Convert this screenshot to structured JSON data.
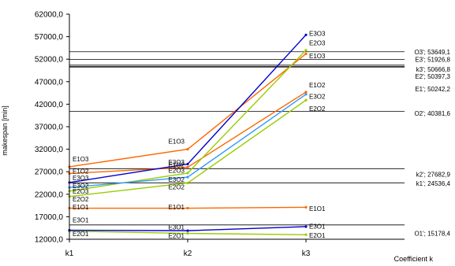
{
  "chart_data": {
    "type": "line",
    "categories": [
      "k1",
      "k2",
      "k3"
    ],
    "xlabel": "Coefficient k",
    "ylabel": "makespan [min]",
    "ylim": [
      12000,
      62000
    ],
    "yticks": [
      12000,
      17000,
      22000,
      27000,
      32000,
      37000,
      42000,
      47000,
      52000,
      57000,
      62000
    ],
    "ytick_labels": [
      "12000,0",
      "17000,0",
      "22000,0",
      "27000,0",
      "32000,0",
      "37000,0",
      "42000,0",
      "47000,0",
      "52000,0",
      "57000,0",
      "62000,0"
    ],
    "grid": false,
    "series": [
      {
        "name": "E1O1",
        "color": "#ff6600",
        "values": [
          18900,
          18900,
          19100
        ]
      },
      {
        "name": "E1O2",
        "color": "#ff6600",
        "values": [
          26600,
          28000,
          44700
        ]
      },
      {
        "name": "E1O3",
        "color": "#ff6600",
        "values": [
          28100,
          32000,
          53200
        ]
      },
      {
        "name": "E2O1",
        "color": "#99cc00",
        "values": [
          13800,
          13300,
          13000
        ]
      },
      {
        "name": "E2O2",
        "color": "#99cc00",
        "values": [
          21500,
          24500,
          42900
        ]
      },
      {
        "name": "E2O3",
        "color": "#99cc00",
        "values": [
          22700,
          26700,
          54000
        ]
      },
      {
        "name": "E3O1",
        "color": "#0000cc",
        "values": [
          14000,
          13900,
          14800
        ]
      },
      {
        "name": "E3O2",
        "color": "#3399ff",
        "values": [
          23500,
          25800,
          44200
        ]
      },
      {
        "name": "E3O3",
        "color": "#0000cc",
        "values": [
          24600,
          28700,
          57400
        ]
      }
    ],
    "point_labels": [
      {
        "text": "E1O3",
        "category": 0,
        "y": 29800
      },
      {
        "text": "E1O2",
        "category": 0,
        "y": 27100
      },
      {
        "text": "E3O3",
        "category": 0,
        "y": 25600
      },
      {
        "text": "E3O2",
        "category": 0,
        "y": 23900
      },
      {
        "text": "E2O3",
        "category": 0,
        "y": 22700
      },
      {
        "text": "E2O2",
        "category": 0,
        "y": 20900
      },
      {
        "text": "E1O1",
        "category": 0,
        "y": 19200
      },
      {
        "text": "E3O1",
        "category": 0,
        "y": 16300
      },
      {
        "text": "E2O1",
        "category": 0,
        "y": 13200
      },
      {
        "text": "E1O3",
        "category": 1,
        "y": 33800
      },
      {
        "text": "E3O3",
        "category": 1,
        "y": 29100
      },
      {
        "text": "E1O2",
        "category": 1,
        "y": 28500
      },
      {
        "text": "E2O3",
        "category": 1,
        "y": 27300
      },
      {
        "text": "E3O2",
        "category": 1,
        "y": 25300
      },
      {
        "text": "E2O2",
        "category": 1,
        "y": 23600
      },
      {
        "text": "E1O1",
        "category": 1,
        "y": 19200
      },
      {
        "text": "E3O1",
        "category": 1,
        "y": 14700
      },
      {
        "text": "E2O1",
        "category": 1,
        "y": 12800
      },
      {
        "text": "E3O3",
        "category": 2,
        "y": 57700
      },
      {
        "text": "E2O3",
        "category": 2,
        "y": 55600
      },
      {
        "text": "E1O3",
        "category": 2,
        "y": 52700
      },
      {
        "text": "E1O2",
        "category": 2,
        "y": 46300
      },
      {
        "text": "E3O2",
        "category": 2,
        "y": 43700
      },
      {
        "text": "E2O2",
        "category": 2,
        "y": 41000
      },
      {
        "text": "E1O1",
        "category": 2,
        "y": 18800
      },
      {
        "text": "E3O1",
        "category": 2,
        "y": 14900
      },
      {
        "text": "E2O1",
        "category": 2,
        "y": 12900
      }
    ],
    "reference_lines": [
      {
        "label": "O3'; 53649,1",
        "value": 53649.1
      },
      {
        "label": "E3'; 51926,8",
        "value": 51926.8
      },
      {
        "label": "k3'; 50666,8",
        "value": 50666.8
      },
      {
        "label": "E2'; 50397,3",
        "value": 50397.3
      },
      {
        "label": "E1'; 50242,2",
        "value": 50242.2
      },
      {
        "label": "O2'; 40381,6",
        "value": 40381.6
      },
      {
        "label": "k2'; 27682,9",
        "value": 27682.9
      },
      {
        "label": "k1'; 24536,4",
        "value": 24536.4
      },
      {
        "label": "O1'; 15178,4",
        "value": 15178.4
      }
    ],
    "reference_label_values": [
      53649.1,
      51926.8,
      49800,
      48200,
      45400,
      40000,
      26400,
      24400,
      13300
    ]
  }
}
